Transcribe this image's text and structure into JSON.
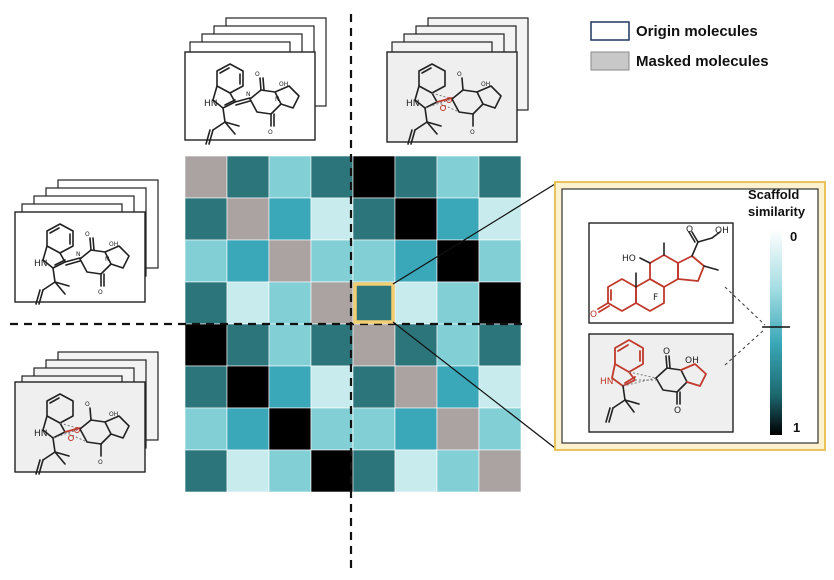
{
  "legend": {
    "origin_label": "Origin molecules",
    "masked_label": "Masked molecules",
    "origin_color": "#ffffff",
    "masked_color": "#c8c8c8"
  },
  "scale": {
    "title_line1": "Scaffold",
    "title_line2": "similarity",
    "top_label": "0",
    "bottom_label": "1"
  },
  "colors": {
    "gray": "#aaa3a2",
    "black": "#000000",
    "dark_teal": "#2b757b",
    "teal": "#3aa8b8",
    "light_teal": "#82cfd6",
    "pale_teal": "#c8ebee",
    "highlight_border": "#f3cf73",
    "inset_bg": "#fdf2cf"
  },
  "matrix": {
    "rows": 8,
    "cols": 8,
    "selected_cell": [
      3,
      4
    ],
    "cells": [
      [
        "gray",
        "dark_teal",
        "light_teal",
        "dark_teal",
        "black",
        "dark_teal",
        "light_teal",
        "dark_teal"
      ],
      [
        "dark_teal",
        "gray",
        "teal",
        "pale_teal",
        "dark_teal",
        "black",
        "teal",
        "pale_teal"
      ],
      [
        "light_teal",
        "teal",
        "gray",
        "light_teal",
        "light_teal",
        "teal",
        "black",
        "light_teal"
      ],
      [
        "dark_teal",
        "pale_teal",
        "light_teal",
        "gray",
        "dark_teal",
        "pale_teal",
        "light_teal",
        "black"
      ],
      [
        "black",
        "dark_teal",
        "light_teal",
        "dark_teal",
        "gray",
        "dark_teal",
        "light_teal",
        "dark_teal"
      ],
      [
        "dark_teal",
        "black",
        "teal",
        "pale_teal",
        "dark_teal",
        "gray",
        "teal",
        "pale_teal"
      ],
      [
        "light_teal",
        "teal",
        "black",
        "light_teal",
        "light_teal",
        "teal",
        "gray",
        "light_teal"
      ],
      [
        "dark_teal",
        "pale_teal",
        "light_teal",
        "black",
        "dark_teal",
        "pale_teal",
        "light_teal",
        "gray"
      ]
    ]
  },
  "molecule_labels": {
    "nh": "HN",
    "oh": "OH",
    "o": "O",
    "n": "N",
    "ho": "HO",
    "f": "F"
  }
}
